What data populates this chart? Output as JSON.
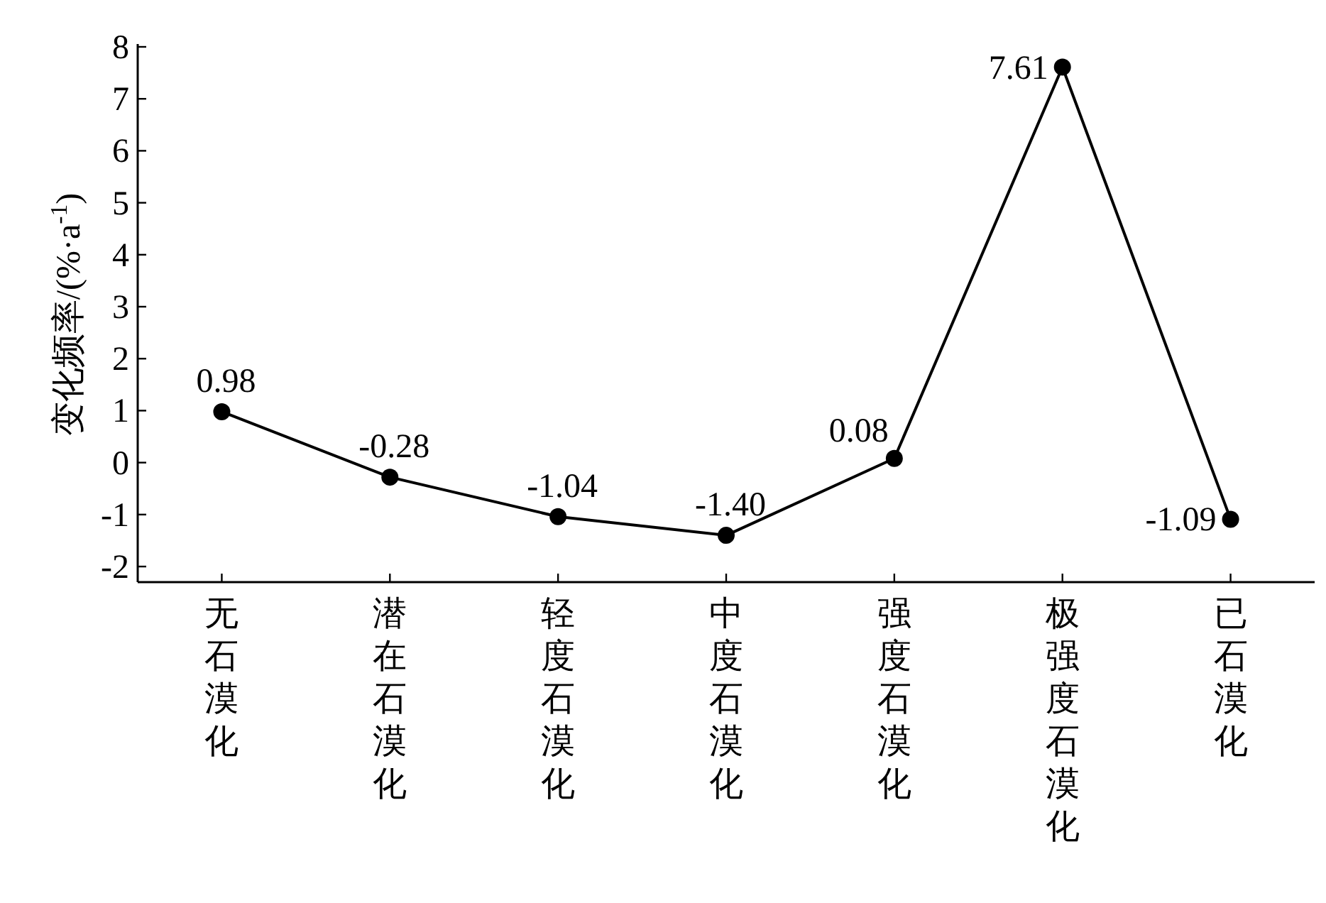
{
  "chart_data": {
    "type": "line",
    "ylabel": "变化频率/(%·a$^{-1}$)",
    "categories": [
      "无石漠化",
      "潜在石漠化",
      "轻度石漠化",
      "中度石漠化",
      "强度石漠化",
      "极强度石漠化",
      "已石漠化"
    ],
    "values": [
      0.98,
      -0.28,
      -1.04,
      -1.4,
      0.08,
      7.61,
      -1.09
    ],
    "value_labels": [
      "0.98",
      "-0.28",
      "-1.04",
      "-1.40",
      "0.08",
      "7.61",
      "-1.09"
    ],
    "color": "#000000",
    "marker": "circle",
    "line_style": "solid",
    "ylim": [
      -2.3,
      8
    ],
    "yticks": [
      -2,
      -1,
      0,
      1,
      2,
      3,
      4,
      5,
      6,
      7,
      8
    ],
    "grid": false
  }
}
